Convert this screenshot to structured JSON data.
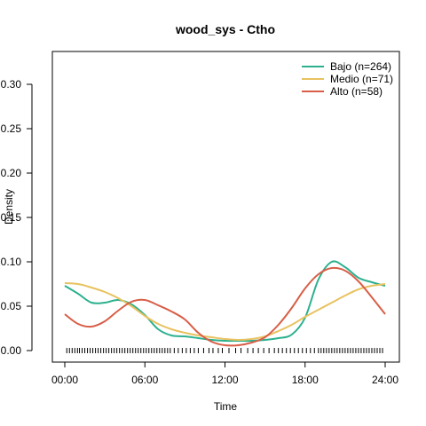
{
  "chart_data": {
    "type": "line",
    "title": "wood_sys - Ctho",
    "xlabel": "Time",
    "ylabel": "Density",
    "xlim": [
      0,
      24
    ],
    "ylim": [
      0,
      0.32
    ],
    "x_ticks": [
      0,
      6,
      12,
      18,
      24
    ],
    "x_tick_labels": [
      "00:00",
      "06:00",
      "12:00",
      "18:00",
      "24:00"
    ],
    "y_ticks": [
      0.0,
      0.05,
      0.1,
      0.15,
      0.2,
      0.25,
      0.3
    ],
    "y_tick_labels": [
      "0.00",
      "0.05",
      "0.10",
      "0.15",
      "0.20",
      "0.25",
      "0.30"
    ],
    "legend_position": "top-right",
    "series": [
      {
        "name": "Bajo (n=264)",
        "color": "#2cb08f",
        "points": [
          [
            0,
            0.073
          ],
          [
            1,
            0.064
          ],
          [
            2,
            0.054
          ],
          [
            3,
            0.054
          ],
          [
            4,
            0.057
          ],
          [
            5,
            0.052
          ],
          [
            6,
            0.04
          ],
          [
            7,
            0.024
          ],
          [
            8,
            0.017
          ],
          [
            9,
            0.016
          ],
          [
            10,
            0.014
          ],
          [
            11,
            0.012
          ],
          [
            12,
            0.011
          ],
          [
            13,
            0.011
          ],
          [
            14,
            0.011
          ],
          [
            15,
            0.012
          ],
          [
            16,
            0.014
          ],
          [
            17,
            0.018
          ],
          [
            18,
            0.037
          ],
          [
            19,
            0.08
          ],
          [
            20,
            0.1
          ],
          [
            21,
            0.094
          ],
          [
            22,
            0.082
          ],
          [
            23,
            0.077
          ],
          [
            24,
            0.073
          ]
        ]
      },
      {
        "name": "Medio (n=71)",
        "color": "#e8c260",
        "points": [
          [
            0,
            0.076
          ],
          [
            1,
            0.075
          ],
          [
            2,
            0.071
          ],
          [
            3,
            0.066
          ],
          [
            4,
            0.059
          ],
          [
            5,
            0.05
          ],
          [
            6,
            0.039
          ],
          [
            7,
            0.03
          ],
          [
            8,
            0.024
          ],
          [
            9,
            0.02
          ],
          [
            10,
            0.017
          ],
          [
            11,
            0.015
          ],
          [
            12,
            0.013
          ],
          [
            13,
            0.012
          ],
          [
            14,
            0.013
          ],
          [
            15,
            0.016
          ],
          [
            16,
            0.022
          ],
          [
            17,
            0.029
          ],
          [
            18,
            0.038
          ],
          [
            19,
            0.046
          ],
          [
            20,
            0.054
          ],
          [
            21,
            0.062
          ],
          [
            22,
            0.069
          ],
          [
            23,
            0.073
          ],
          [
            24,
            0.075
          ]
        ]
      },
      {
        "name": "Alto (n=58)",
        "color": "#d85e47",
        "points": [
          [
            0,
            0.041
          ],
          [
            1,
            0.03
          ],
          [
            2,
            0.027
          ],
          [
            3,
            0.033
          ],
          [
            4,
            0.045
          ],
          [
            5,
            0.055
          ],
          [
            6,
            0.057
          ],
          [
            7,
            0.051
          ],
          [
            8,
            0.044
          ],
          [
            9,
            0.035
          ],
          [
            10,
            0.02
          ],
          [
            11,
            0.01
          ],
          [
            12,
            0.006
          ],
          [
            13,
            0.006
          ],
          [
            14,
            0.009
          ],
          [
            15,
            0.015
          ],
          [
            16,
            0.029
          ],
          [
            17,
            0.048
          ],
          [
            18,
            0.07
          ],
          [
            19,
            0.086
          ],
          [
            20,
            0.093
          ],
          [
            21,
            0.09
          ],
          [
            22,
            0.078
          ],
          [
            23,
            0.06
          ],
          [
            24,
            0.041
          ]
        ]
      }
    ],
    "rug": [
      0.15,
      0.35,
      0.55,
      0.75,
      0.95,
      1.1,
      1.3,
      1.5,
      1.7,
      1.9,
      2.1,
      2.3,
      2.5,
      2.7,
      2.9,
      3.1,
      3.3,
      3.5,
      3.7,
      3.9,
      4.1,
      4.3,
      4.5,
      4.7,
      4.9,
      5.1,
      5.3,
      5.5,
      5.7,
      5.9,
      6.1,
      6.3,
      6.5,
      6.7,
      6.9,
      7.1,
      7.3,
      7.5,
      7.7,
      7.9,
      8.2,
      8.5,
      8.8,
      9.1,
      9.4,
      9.7,
      10.0,
      10.4,
      10.8,
      11.1,
      11.5,
      11.8,
      12.3,
      12.8,
      13.2,
      13.7,
      14.1,
      14.5,
      14.9,
      15.3,
      15.7,
      16.0,
      16.3,
      16.6,
      16.9,
      17.2,
      17.5,
      17.8,
      18.1,
      18.4,
      18.7,
      19.0,
      19.2,
      19.4,
      19.6,
      19.8,
      20.0,
      20.2,
      20.4,
      20.6,
      20.8,
      21.0,
      21.2,
      21.4,
      21.6,
      21.8,
      22.0,
      22.2,
      22.4,
      22.6,
      22.8,
      23.0,
      23.2,
      23.4,
      23.6,
      23.8
    ]
  }
}
